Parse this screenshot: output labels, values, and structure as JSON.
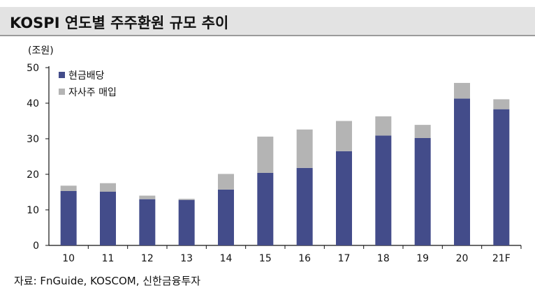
{
  "title": "KOSPI 연도별 주주환원 규모 추이",
  "unit_label": "(조원)",
  "source": "자료: FnGuide, KOSCOM, 신한금융투자",
  "colors": {
    "cash": "#434c8a",
    "buyback": "#b4b4b4",
    "axis": "#111111"
  },
  "chart_data": {
    "type": "bar",
    "stacked": true,
    "categories": [
      "10",
      "11",
      "12",
      "13",
      "14",
      "15",
      "16",
      "17",
      "18",
      "19",
      "20",
      "21F"
    ],
    "series": [
      {
        "name": "현금배당",
        "values": [
          15.3,
          15.1,
          13.0,
          12.8,
          15.7,
          20.4,
          21.8,
          26.5,
          30.9,
          30.2,
          41.3,
          38.3
        ]
      },
      {
        "name": "자사주 매입",
        "values": [
          1.5,
          2.4,
          1.0,
          0.3,
          4.4,
          10.2,
          10.8,
          8.5,
          5.4,
          3.7,
          4.4,
          2.8
        ]
      }
    ],
    "ylim": [
      0,
      50
    ],
    "yticks": [
      0,
      10,
      20,
      30,
      40,
      50
    ],
    "legend_position": "top-left",
    "grid": false
  }
}
